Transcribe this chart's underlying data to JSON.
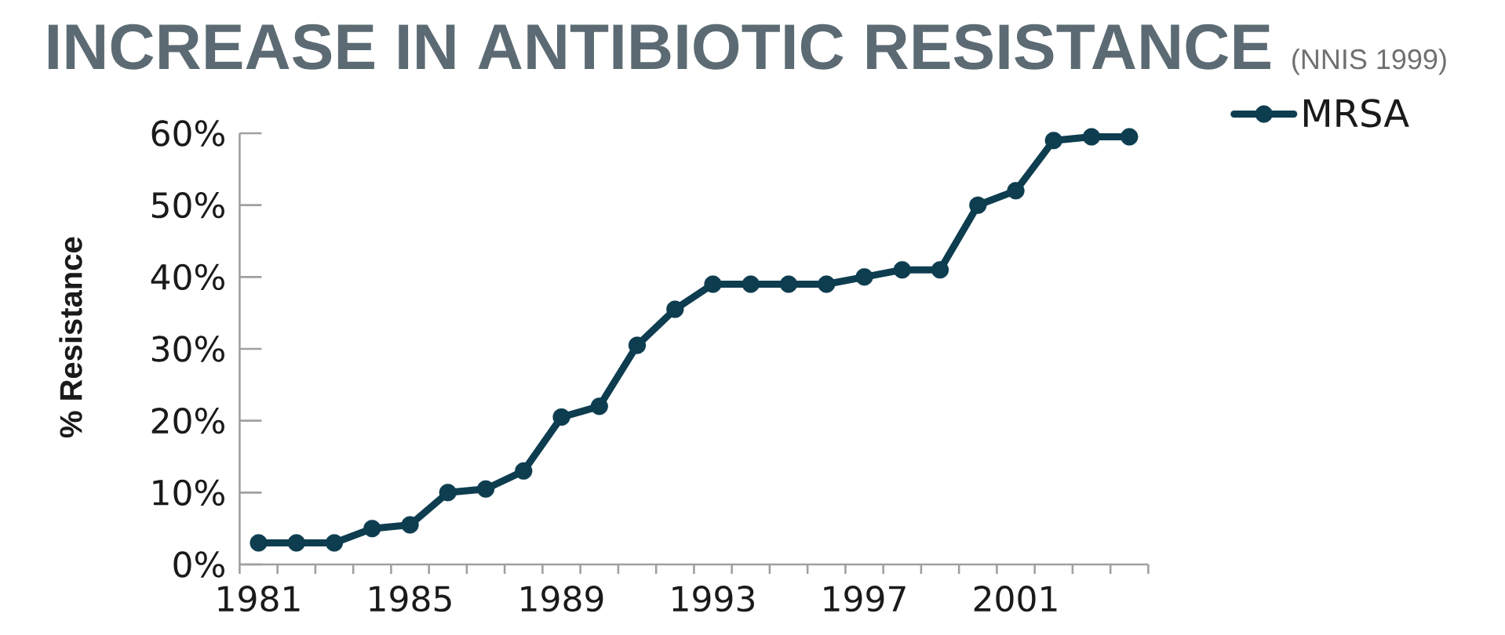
{
  "chart_data": {
    "type": "line",
    "title": "INCREASE IN ANTIBIOTIC RESISTANCE",
    "subtitle": "(NNIS 1999)",
    "ylabel": "% Resistance",
    "categories": [
      "1981",
      null,
      null,
      null,
      "1985",
      null,
      null,
      null,
      "1989",
      null,
      null,
      null,
      "1993",
      null,
      null,
      null,
      "1997",
      null,
      null,
      null,
      "2001",
      null,
      null,
      null
    ],
    "series": [
      {
        "name": "MRSA",
        "color": "#0d3d4f",
        "values": [
          3,
          3,
          3,
          5,
          5.5,
          10,
          10.5,
          13,
          20.5,
          22,
          30.5,
          35.5,
          39,
          39,
          39,
          39,
          40,
          41,
          41,
          50,
          52,
          59,
          59.5,
          59.5
        ]
      }
    ],
    "ylim": [
      0,
      60
    ],
    "yticks": [
      {
        "value": 0,
        "label": "0%"
      },
      {
        "value": 10,
        "label": "10%"
      },
      {
        "value": 20,
        "label": "20%"
      },
      {
        "value": 30,
        "label": "30%"
      },
      {
        "value": 40,
        "label": "40%"
      },
      {
        "value": 50,
        "label": "50%"
      },
      {
        "value": 60,
        "label": "60%"
      }
    ],
    "legend": "top right",
    "marker": "circle",
    "line_style": "solid"
  }
}
